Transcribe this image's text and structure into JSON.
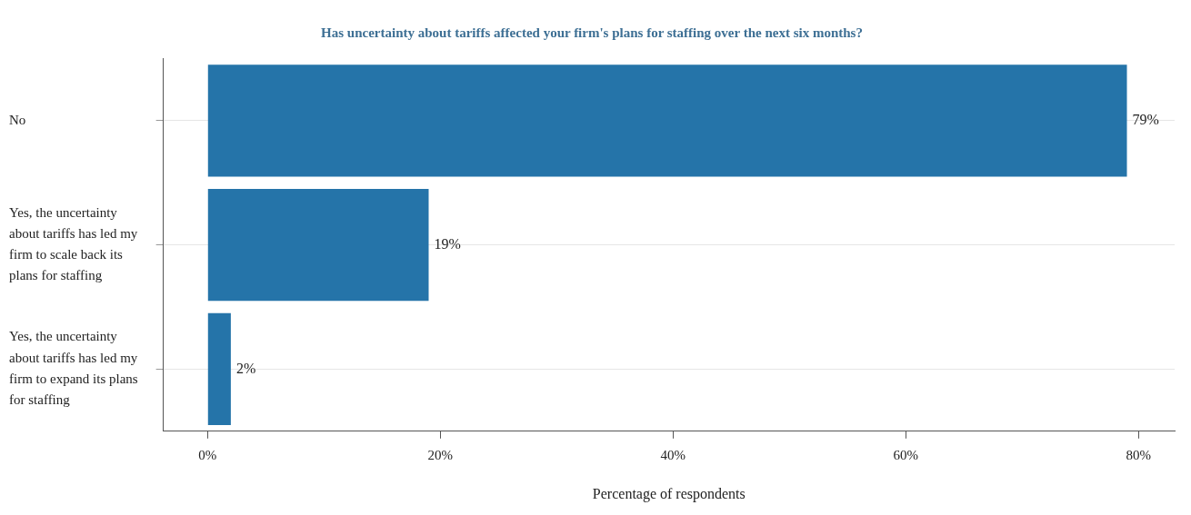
{
  "chart_data": {
    "type": "bar",
    "orientation": "horizontal",
    "title": "Has uncertainty about tariffs affected your firm's plans for staffing over the next six months?",
    "xlabel": "Percentage of respondents",
    "categories": [
      "No",
      "Yes, the uncertainty about tariffs has led my firm to scale back its plans for staffing",
      "Yes, the uncertainty about tariffs has led my firm to expand its plans for staffing"
    ],
    "values": [
      79,
      19,
      2
    ],
    "value_labels": [
      "79%",
      "19%",
      "2%"
    ],
    "color": "#2574a9",
    "xlim": [
      -3.8,
      83.1
    ],
    "xticks": [
      {
        "value": 0,
        "label": "0%"
      },
      {
        "value": 20,
        "label": "20%"
      },
      {
        "value": 40,
        "label": "40%"
      },
      {
        "value": 60,
        "label": "60%"
      },
      {
        "value": 80,
        "label": "80%"
      }
    ],
    "grid": "y"
  }
}
